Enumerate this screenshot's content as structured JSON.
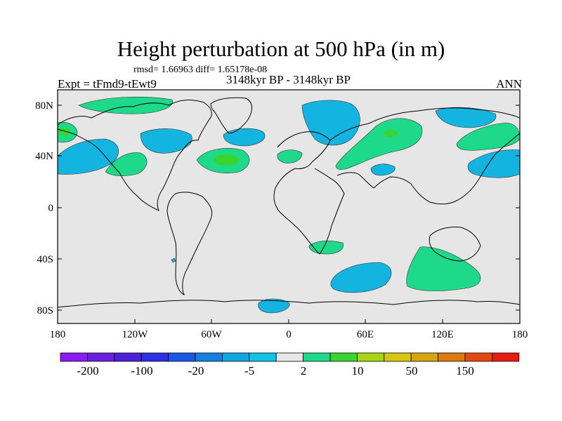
{
  "title": "Height perturbation at 500 hPa (in m)",
  "stats": "rmsd= 1.66963 diff= 1.65178e-08",
  "experiment": "Expt = tFmd9-tEwt9",
  "period": "3148kyr BP - 3148kyr BP",
  "season": "ANN",
  "axes": {
    "x_ticks": [
      "180",
      "120W",
      "60W",
      "0",
      "60E",
      "120E",
      "180"
    ],
    "y_ticks": [
      "80N",
      "40N",
      "0",
      "40S",
      "80S"
    ]
  },
  "colorbar": {
    "colors": [
      "#8a1bf5",
      "#6a1fe0",
      "#4b22d8",
      "#2f2fe6",
      "#1b57e6",
      "#1680e0",
      "#10a8e0",
      "#12c3e8",
      "#e6e6e6",
      "#1ed98a",
      "#3ad430",
      "#a8d414",
      "#d4c814",
      "#d6a50f",
      "#de7a10",
      "#e24a12",
      "#e81c10"
    ],
    "labels": [
      "-200",
      "-100",
      "-20",
      "-5",
      "2",
      "10",
      "50",
      "150"
    ]
  },
  "palette": {
    "ocean_bg": "#e6e6e6",
    "neg": "#13b5e0",
    "pos": "#1ed98a",
    "pos_strong": "#3ad430"
  }
}
